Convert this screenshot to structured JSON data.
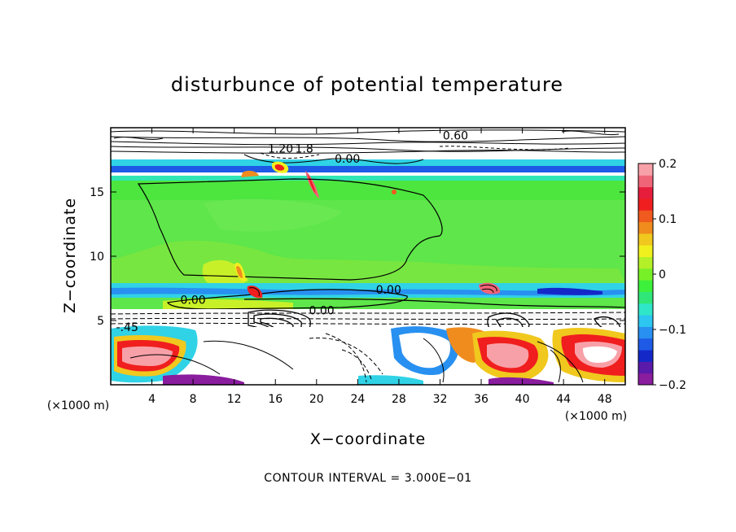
{
  "chart_data": {
    "type": "heatmap",
    "title": "disturbunce of potential temperature",
    "xlabel": "X−coordinate",
    "ylabel": "Z−coordinate",
    "x_unit_label_left": "(×1000 m)",
    "x_unit_label_right": "(×1000 m)",
    "xlim": [
      0,
      50
    ],
    "ylim": [
      0,
      20
    ],
    "x_ticks": [
      4,
      8,
      12,
      16,
      20,
      24,
      28,
      32,
      36,
      40,
      44,
      48
    ],
    "y_ticks": [
      5,
      10,
      15
    ],
    "footnote": "CONTOUR INTERVAL = 3.000E−01",
    "colorbar": {
      "min": -0.2,
      "max": 0.2,
      "tick_values": [
        0.2,
        0.1,
        0,
        -0.1,
        -0.2
      ],
      "tick_labels": [
        "0.2",
        "0.1",
        "0",
        "−0.1",
        "−0.2"
      ],
      "colors": [
        "#8a1c9e",
        "#5a1aaa",
        "#1428c8",
        "#1e5ae6",
        "#2890f0",
        "#2cc6f0",
        "#30e6c8",
        "#30e678",
        "#3cf03c",
        "#78f028",
        "#b4f028",
        "#f0f01e",
        "#f0c81e",
        "#f08c1e",
        "#f05a1e",
        "#f01e1e",
        "#e61e3c",
        "#f06478",
        "#f8a0a8"
      ]
    },
    "contour_labels": [
      {
        "text": "0.60",
        "x": 33.5,
        "z": 19.4
      },
      {
        "text": "1.20",
        "x": 16.5,
        "z": 18.4
      },
      {
        "text": "1.8",
        "x": 18.8,
        "z": 18.4
      },
      {
        "text": "0.00",
        "x": 23.0,
        "z": 17.6
      },
      {
        "text": "0.00",
        "x": 8.0,
        "z": 6.6
      },
      {
        "text": "0.00",
        "x": 27.0,
        "z": 7.4
      },
      {
        "text": "0.00",
        "x": 20.5,
        "z": 5.8
      },
      {
        "text": "-.45",
        "x": 1.6,
        "z": 4.5
      }
    ]
  }
}
